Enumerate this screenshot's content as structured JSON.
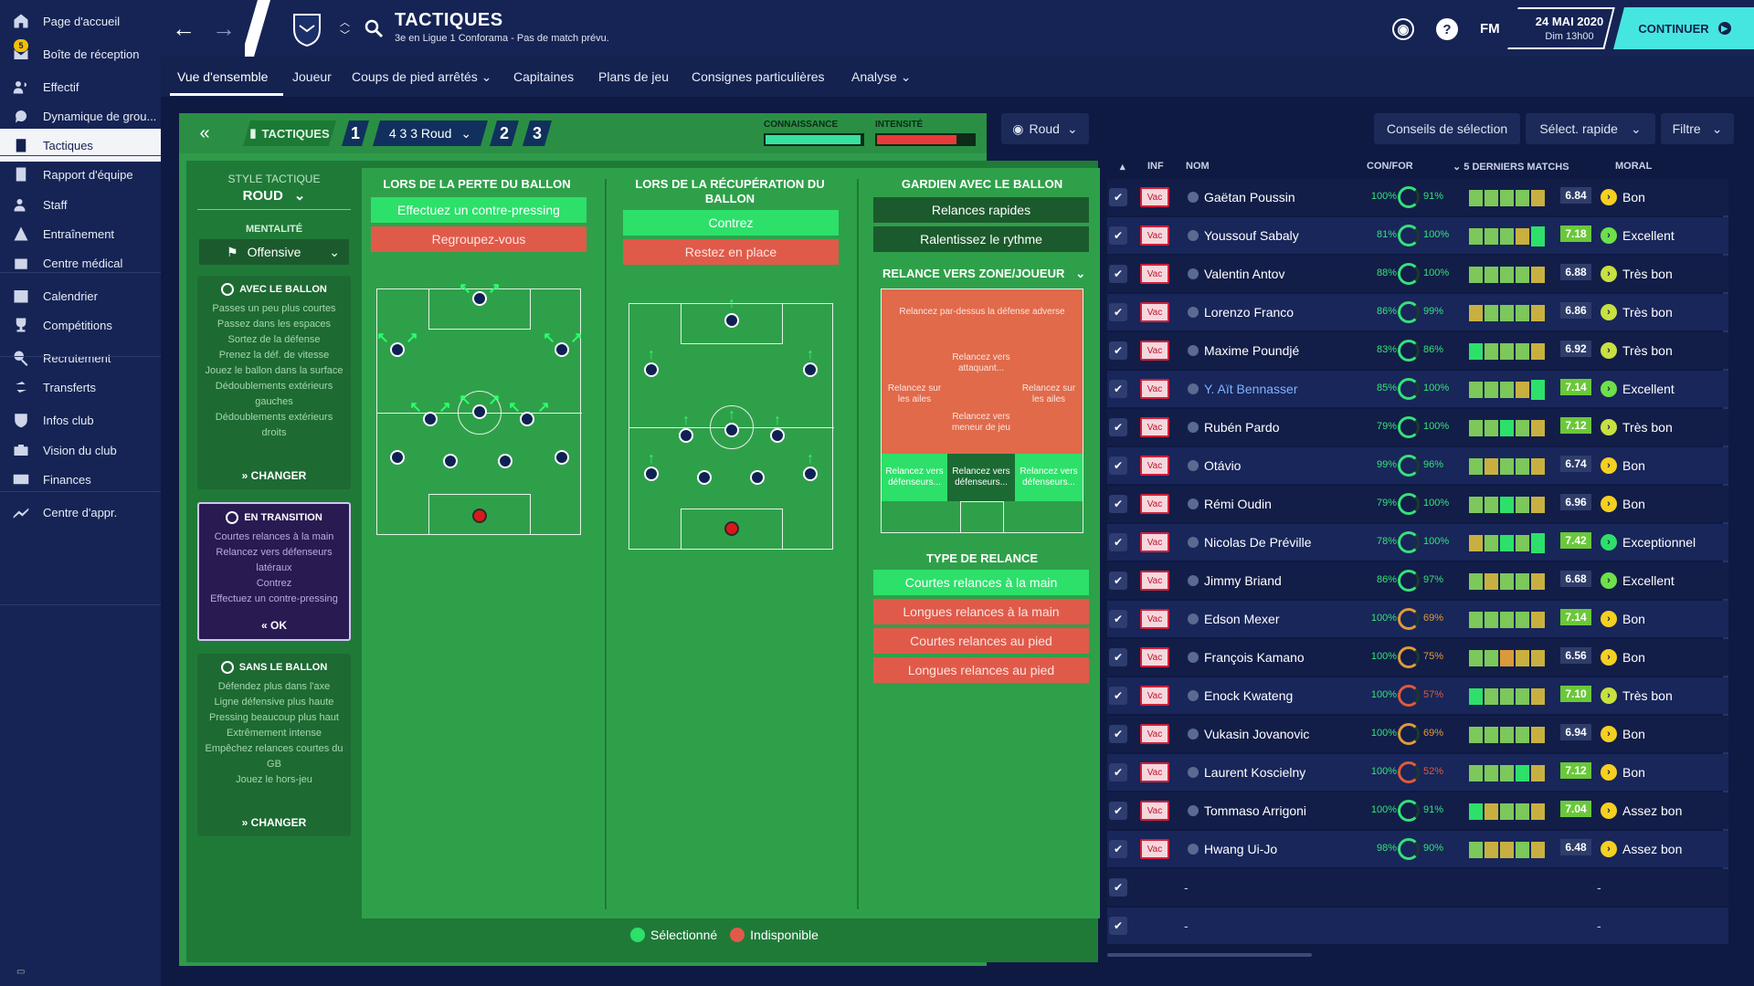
{
  "sidebar": {
    "items": [
      {
        "label": "Page d'accueil",
        "icon": "home-icon"
      },
      {
        "label": "Boîte de réception",
        "icon": "inbox-icon",
        "badge": "5"
      },
      {
        "label": "Effectif",
        "icon": "squad-icon"
      },
      {
        "label": "Dynamique de grou...",
        "icon": "dynamics-icon"
      },
      {
        "label": "Tactiques",
        "icon": "tactics-icon",
        "active": true
      },
      {
        "label": "Rapport d'équipe",
        "icon": "report-icon"
      },
      {
        "label": "Staff",
        "icon": "staff-icon"
      },
      {
        "label": "Entraînement",
        "icon": "training-icon"
      },
      {
        "label": "Centre médical",
        "icon": "medical-icon"
      },
      {
        "label": "Calendrier",
        "icon": "calendar-icon"
      },
      {
        "label": "Compétitions",
        "icon": "trophy-icon"
      },
      {
        "label": "Recrutement",
        "icon": "scouting-icon"
      },
      {
        "label": "Transferts",
        "icon": "transfers-icon"
      },
      {
        "label": "Infos club",
        "icon": "club-info-icon"
      },
      {
        "label": "Vision du club",
        "icon": "vision-icon"
      },
      {
        "label": "Finances",
        "icon": "finances-icon"
      },
      {
        "label": "Centre d'appr.",
        "icon": "academy-icon"
      }
    ]
  },
  "header": {
    "title": "TACTIQUES",
    "subtitle": "3e en Ligue 1 Conforama - Pas de match prévu.",
    "fm_logo": "FM",
    "date_line1": "24 MAI 2020",
    "date_line2": "Dim 13h00",
    "continue_label": "CONTINUER"
  },
  "subnav": {
    "tabs": [
      "Vue d'ensemble",
      "Joueur",
      "Coups de pied arrêtés",
      "Capitaines",
      "Plans de jeu",
      "Consignes particulières",
      "Analyse"
    ]
  },
  "tactics_bar": {
    "tab_label": "TACTIQUES",
    "slot1": "1",
    "formation": "4 3 3 Roud",
    "slot2": "2",
    "slot3": "3",
    "familiarity_label": "CONNAISSANCE",
    "familiarity_value": 0.98,
    "intensity_label": "INTENSITÉ",
    "intensity_value": 0.82
  },
  "style": {
    "label": "STYLE TACTIQUE",
    "value": "ROUD",
    "mentality_label": "MENTALITÉ",
    "mentality_value": "Offensive"
  },
  "in_possession": {
    "title": "AVEC LE BALLON",
    "items": [
      "Passes un peu plus courtes",
      "Passez dans les espaces",
      "Sortez de la défense",
      "Prenez la déf. de vitesse",
      "Jouez le ballon dans la surface",
      "Dédoublements extérieurs gauches",
      "Dédoublements extérieurs droits"
    ],
    "action": "CHANGER"
  },
  "in_transition": {
    "title": "EN TRANSITION",
    "items": [
      "Courtes relances à la main",
      "Relancez vers défenseurs latéraux",
      "Contrez",
      "Effectuez un contre-pressing"
    ],
    "action": "OK"
  },
  "out_possession": {
    "title": "SANS LE BALLON",
    "items": [
      "Défendez plus dans l'axe",
      "Ligne défensive plus haute",
      "Pressing beaucoup plus haut",
      "Extrêmement intense",
      "Empêchez relances courtes du GB",
      "Jouez le hors-jeu"
    ],
    "action": "CHANGER"
  },
  "transition_columns": {
    "lost": {
      "title": "LORS DE LA PERTE DU BALLON",
      "options": [
        {
          "label": "Effectuez un contre-pressing",
          "state": "selected"
        },
        {
          "label": "Regroupez-vous",
          "state": "unavailable"
        }
      ]
    },
    "won": {
      "title": "LORS DE LA RÉCUPÉRATION DU BALLON",
      "options": [
        {
          "label": "Contrez",
          "state": "selected"
        },
        {
          "label": "Restez en place",
          "state": "unavailable"
        }
      ]
    },
    "gk": {
      "title": "GARDIEN AVEC LE BALLON",
      "options": [
        {
          "label": "Relances rapides",
          "state": "neutral"
        },
        {
          "label": "Ralentissez le rythme",
          "state": "neutral"
        }
      ],
      "zone_title": "RELANCE VERS ZONE/JOUEUR",
      "zones": {
        "top": "Relancez par-dessus la défense adverse",
        "mid_left": "Relancez sur les ailes",
        "mid_c1": "Relancez vers attaquant...",
        "mid_c2": "Relancez vers meneur de jeu",
        "mid_right": "Relancez sur les ailes",
        "bot_left": "Relancez vers défenseurs...",
        "bot_center": "Relancez vers défenseurs...",
        "bot_right": "Relancez vers défenseurs..."
      },
      "dist_title": "TYPE DE RELANCE",
      "dist_options": [
        {
          "label": "Courtes relances à la main",
          "state": "selected"
        },
        {
          "label": "Longues relances à la main",
          "state": "unavailable"
        },
        {
          "label": "Courtes relances au pied",
          "state": "unavailable"
        },
        {
          "label": "Longues relances au pied",
          "state": "unavailable"
        }
      ]
    }
  },
  "legend": {
    "selected": "Sélectionné",
    "unavailable": "Indisponible"
  },
  "right_panel": {
    "role_select": "Roud",
    "advice_btn": "Conseils de sélection",
    "quick_select": "Sélect. rapide",
    "filter": "Filtre",
    "col_inf": "INF",
    "col_name": "NOM",
    "col_con": "CON/FOR",
    "col_last5": "5 DERNIERS MATCHS",
    "col_moral": "MORAL",
    "vac_label": "Vac",
    "players": [
      {
        "name": "Gaëtan Poussin",
        "con": "100%",
        "for": "91%",
        "rating": "6.84",
        "moral": "Bon",
        "form": [
          "g",
          "g",
          "g",
          "g",
          "y"
        ],
        "top": false
      },
      {
        "name": "Youssouf Sabaly",
        "con": "81%",
        "for": "100%",
        "rating": "7.18",
        "moral": "Excellent",
        "form": [
          "g",
          "g",
          "g",
          "y",
          "G"
        ],
        "top": true
      },
      {
        "name": "Valentin Antov",
        "con": "88%",
        "for": "100%",
        "rating": "6.88",
        "moral": "Très bon",
        "form": [
          "g",
          "g",
          "g",
          "g",
          "y"
        ],
        "top": false
      },
      {
        "name": "Lorenzo Franco",
        "con": "86%",
        "for": "99%",
        "rating": "6.86",
        "moral": "Très bon",
        "form": [
          "y",
          "g",
          "g",
          "g",
          "y"
        ],
        "top": false
      },
      {
        "name": "Maxime Poundjé",
        "con": "83%",
        "for": "86%",
        "rating": "6.92",
        "moral": "Très bon",
        "form": [
          "G",
          "g",
          "g",
          "g",
          "y"
        ],
        "top": false
      },
      {
        "name": "Y. Aït Bennasser",
        "con": "85%",
        "for": "100%",
        "rating": "7.14",
        "moral": "Excellent",
        "form": [
          "g",
          "g",
          "g",
          "y",
          "G"
        ],
        "top": true,
        "highlight": true
      },
      {
        "name": "Rubén Pardo",
        "con": "79%",
        "for": "100%",
        "rating": "7.12",
        "moral": "Très bon",
        "form": [
          "g",
          "g",
          "G",
          "g",
          "y"
        ],
        "top": true
      },
      {
        "name": "Otávio",
        "con": "99%",
        "for": "96%",
        "rating": "6.74",
        "moral": "Bon",
        "form": [
          "g",
          "y",
          "g",
          "g",
          "y"
        ],
        "top": false
      },
      {
        "name": "Rémi Oudin",
        "con": "79%",
        "for": "100%",
        "rating": "6.96",
        "moral": "Bon",
        "form": [
          "g",
          "g",
          "G",
          "g",
          "y"
        ],
        "top": false
      },
      {
        "name": "Nicolas De Préville",
        "con": "78%",
        "for": "100%",
        "rating": "7.42",
        "moral": "Exceptionnel",
        "form": [
          "y",
          "g",
          "G",
          "g",
          "G"
        ],
        "top": true
      },
      {
        "name": "Jimmy Briand",
        "con": "86%",
        "for": "97%",
        "rating": "6.68",
        "moral": "Excellent",
        "form": [
          "g",
          "y",
          "g",
          "g",
          "y"
        ],
        "top": false
      },
      {
        "name": "Edson Mexer",
        "con": "100%",
        "for": "69%",
        "rating": "7.14",
        "moral": "Bon",
        "form": [
          "g",
          "g",
          "g",
          "g",
          "y"
        ],
        "top": true
      },
      {
        "name": "François Kamano",
        "con": "100%",
        "for": "75%",
        "rating": "6.56",
        "moral": "Bon",
        "form": [
          "g",
          "g",
          "o",
          "y",
          "y"
        ],
        "top": false
      },
      {
        "name": "Enock Kwateng",
        "con": "100%",
        "for": "57%",
        "rating": "7.10",
        "moral": "Très bon",
        "form": [
          "G",
          "g",
          "g",
          "g",
          "y"
        ],
        "top": true
      },
      {
        "name": "Vukasin Jovanovic",
        "con": "100%",
        "for": "69%",
        "rating": "6.94",
        "moral": "Bon",
        "form": [
          "g",
          "g",
          "g",
          "g",
          "y"
        ],
        "top": false
      },
      {
        "name": "Laurent Koscielny",
        "con": "100%",
        "for": "52%",
        "rating": "7.12",
        "moral": "Bon",
        "form": [
          "g",
          "g",
          "g",
          "G",
          "y"
        ],
        "top": true
      },
      {
        "name": "Tommaso Arrigoni",
        "con": "100%",
        "for": "91%",
        "rating": "7.04",
        "moral": "Assez bon",
        "form": [
          "G",
          "y",
          "g",
          "g",
          "y"
        ],
        "top": true
      },
      {
        "name": "Hwang Ui-Jo",
        "con": "98%",
        "for": "90%",
        "rating": "6.48",
        "moral": "Assez bon",
        "form": [
          "g",
          "y",
          "y",
          "g",
          "y"
        ],
        "top": false
      }
    ],
    "empty_row_dash": "-"
  },
  "colors": {
    "selected": "#2de06a",
    "unavailable": "#e05a4a",
    "accent": "#46e6e0"
  }
}
